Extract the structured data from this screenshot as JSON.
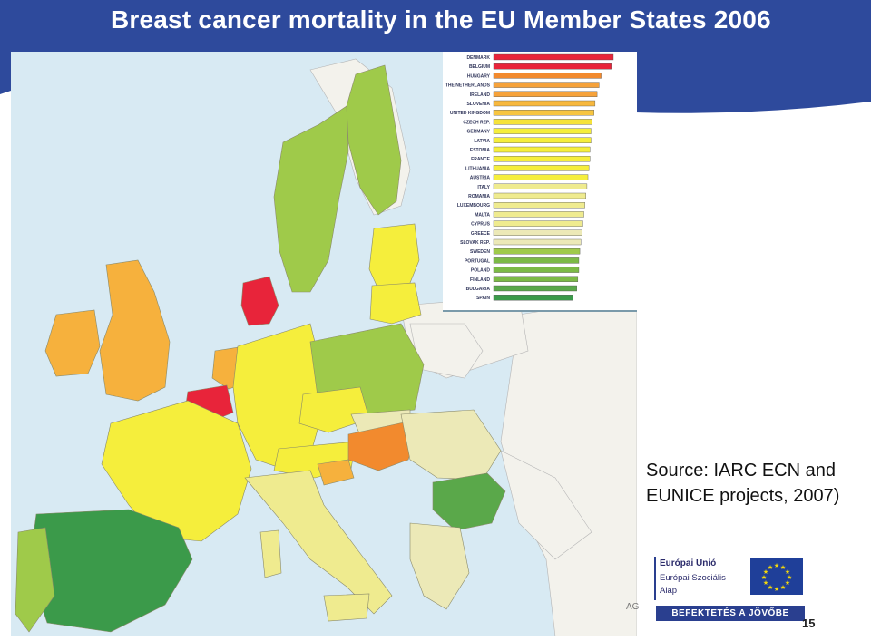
{
  "title": "Breast cancer mortality in the EU Member States  2006",
  "source_line1": "Source: IARC ECN and",
  "source_line2": "EUNICE projects, 2007)",
  "logo": {
    "line1": "Európai Unió",
    "line2": "Európai Szociális",
    "line3": "Alap",
    "banner": "BEFEKTETÉS A JÖVŐBE",
    "flag_color": "#1f3f99"
  },
  "page_number": "15",
  "map_fragment": "AG",
  "colors": {
    "header_blue": "#2e4a9c",
    "sea": "#d8eaf3",
    "non_eu": "#f3f2ec",
    "red": "#e8243a",
    "orange": "#f28a2e",
    "light_orange": "#f6b13d",
    "yellow": "#f5ee3c",
    "pale_yellow": "#efeb8f",
    "cream": "#ece9b7",
    "light_green": "#9fca4a",
    "green": "#5aa84a",
    "dark_green": "#3b9a4a"
  },
  "chart_data": {
    "type": "bar",
    "orientation": "horizontal",
    "categories": [
      "DENMARK",
      "BELGIUM",
      "HUNGARY",
      "THE NETHERLANDS",
      "IRELAND",
      "SLOVENIA",
      "UNITED KINGDOM",
      "CZECH REP.",
      "GERMANY",
      "LATVIA",
      "ESTONIA",
      "FRANCE",
      "LITHUANIA",
      "AUSTRIA",
      "ITALY",
      "ROMANIA",
      "LUXEMBOURG",
      "MALTA",
      "CYPRUS",
      "GREECE",
      "SLOVAK REP.",
      "SWEDEN",
      "PORTUGAL",
      "POLAND",
      "FINLAND",
      "BULGARIA",
      "SPAIN"
    ],
    "values": [
      118,
      116,
      106,
      104,
      102,
      100,
      99,
      97,
      96,
      96,
      95,
      95,
      94,
      93,
      92,
      91,
      90,
      89,
      88,
      87,
      86,
      85,
      84,
      84,
      83,
      82,
      78
    ],
    "colors": [
      "#e8243a",
      "#e8243a",
      "#f28a2e",
      "#f6a23a",
      "#f6a23a",
      "#f7b83e",
      "#f7c540",
      "#f5e23a",
      "#f5ee3c",
      "#f5ee3c",
      "#f5ee3c",
      "#f5ee3c",
      "#f5ee3c",
      "#f5ee3c",
      "#efeb8f",
      "#efeb8f",
      "#efeb8f",
      "#efeb8f",
      "#efeb8f",
      "#ece9b7",
      "#ece9b7",
      "#9fca4a",
      "#7cba46",
      "#7cba46",
      "#7cba46",
      "#5aa84a",
      "#3b9a4a"
    ]
  }
}
